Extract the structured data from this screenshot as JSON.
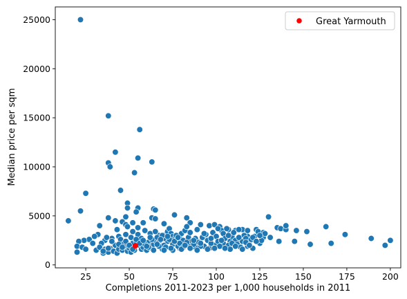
{
  "chart_data": {
    "type": "scatter",
    "title": "",
    "xlabel": "Completions 2011-2023 per 1,000 households in 2011",
    "ylabel": "Median price per sqm",
    "xlim": [
      7.5,
      206
    ],
    "ylim": [
      -300,
      26300
    ],
    "xticks": [
      25,
      50,
      75,
      100,
      125,
      150,
      175,
      200
    ],
    "yticks": [
      0,
      5000,
      10000,
      15000,
      20000,
      25000
    ],
    "grid": false,
    "legend_position": "top-right",
    "colors": {
      "main": "#1f77b4",
      "highlight": "#ff0000",
      "edge": "#ffffff"
    },
    "series": [
      {
        "name": "",
        "color": "#1f77b4",
        "points": [
          [
            22,
            25000
          ],
          [
            38,
            15200
          ],
          [
            56,
            13800
          ],
          [
            42,
            11500
          ],
          [
            55,
            10900
          ],
          [
            38,
            10400
          ],
          [
            39,
            10000
          ],
          [
            63,
            10500
          ],
          [
            53,
            9400
          ],
          [
            45,
            7600
          ],
          [
            25,
            7300
          ],
          [
            49,
            6300
          ],
          [
            55,
            5800
          ],
          [
            49,
            5800
          ],
          [
            64,
            5700
          ],
          [
            65,
            5600
          ],
          [
            22,
            5500
          ],
          [
            54,
            5400
          ],
          [
            76,
            5100
          ],
          [
            48,
            4900
          ],
          [
            63,
            4800
          ],
          [
            38,
            4800
          ],
          [
            65,
            4700
          ],
          [
            83,
            4800
          ],
          [
            130,
            4900
          ],
          [
            15,
            4500
          ],
          [
            42,
            4500
          ],
          [
            46,
            4400
          ],
          [
            52,
            4300
          ],
          [
            48,
            4100
          ],
          [
            58,
            4300
          ],
          [
            70,
            4200
          ],
          [
            85,
            4300
          ],
          [
            91,
            4100
          ],
          [
            96,
            4000
          ],
          [
            99,
            4100
          ],
          [
            102,
            3900
          ],
          [
            107,
            3600
          ],
          [
            111,
            3500
          ],
          [
            115,
            3600
          ],
          [
            118,
            3500
          ],
          [
            123,
            3600
          ],
          [
            127,
            3300
          ],
          [
            135,
            3800
          ],
          [
            137,
            3700
          ],
          [
            140,
            3600
          ],
          [
            140,
            4000
          ],
          [
            146,
            3500
          ],
          [
            152,
            3400
          ],
          [
            163,
            3900
          ],
          [
            174,
            3100
          ],
          [
            189,
            2700
          ],
          [
            197,
            2000
          ],
          [
            200,
            2500
          ],
          [
            166,
            2200
          ],
          [
            154,
            2100
          ],
          [
            145,
            2400
          ],
          [
            136,
            2400
          ],
          [
            127,
            2800
          ],
          [
            118,
            2900
          ],
          [
            113,
            2600
          ],
          [
            108,
            2400
          ],
          [
            104,
            2200
          ],
          [
            99,
            2000
          ],
          [
            93,
            1900
          ],
          [
            88,
            1800
          ],
          [
            84,
            2000
          ],
          [
            79,
            1700
          ],
          [
            75,
            2100
          ],
          [
            72,
            2400
          ],
          [
            70,
            2700
          ],
          [
            67,
            3000
          ],
          [
            62,
            3200
          ],
          [
            59,
            3500
          ],
          [
            55,
            3800
          ],
          [
            52,
            3400
          ],
          [
            48,
            3100
          ],
          [
            44,
            2900
          ],
          [
            40,
            2700
          ],
          [
            36,
            2500
          ],
          [
            34,
            2200
          ],
          [
            32,
            3100
          ],
          [
            30,
            2900
          ],
          [
            27,
            2600
          ],
          [
            24,
            2500
          ],
          [
            21,
            2400
          ],
          [
            20,
            1900
          ],
          [
            20,
            1300
          ],
          [
            23,
            1800
          ],
          [
            25,
            1600
          ],
          [
            29,
            2200
          ],
          [
            31,
            1500
          ],
          [
            33,
            1800
          ],
          [
            35,
            1200
          ],
          [
            36,
            1600
          ],
          [
            38,
            1300
          ],
          [
            39,
            1700
          ],
          [
            41,
            1400
          ],
          [
            42,
            2000
          ],
          [
            43,
            1200
          ],
          [
            44,
            1600
          ],
          [
            46,
            1500
          ],
          [
            47,
            1900
          ],
          [
            49,
            1400
          ],
          [
            50,
            1700
          ],
          [
            51,
            1300
          ],
          [
            52,
            2200
          ],
          [
            54,
            2400
          ],
          [
            56,
            2000
          ],
          [
            57,
            1600
          ],
          [
            58,
            1800
          ],
          [
            60,
            1500
          ],
          [
            61,
            2300
          ],
          [
            62,
            1900
          ],
          [
            63,
            1700
          ],
          [
            64,
            2100
          ],
          [
            65,
            2500
          ],
          [
            66,
            2800
          ],
          [
            67,
            2300
          ],
          [
            68,
            1900
          ],
          [
            69,
            1600
          ],
          [
            70,
            2000
          ],
          [
            71,
            3100
          ],
          [
            72,
            3400
          ],
          [
            73,
            3700
          ],
          [
            74,
            3200
          ],
          [
            75,
            2900
          ],
          [
            76,
            2600
          ],
          [
            77,
            2300
          ],
          [
            78,
            1900
          ],
          [
            79,
            2700
          ],
          [
            80,
            3200
          ],
          [
            81,
            2500
          ],
          [
            82,
            3500
          ],
          [
            83,
            3900
          ],
          [
            84,
            2800
          ],
          [
            85,
            3300
          ],
          [
            86,
            2400
          ],
          [
            87,
            2100
          ],
          [
            88,
            2700
          ],
          [
            89,
            3600
          ],
          [
            90,
            2300
          ],
          [
            91,
            1900
          ],
          [
            92,
            2800
          ],
          [
            94,
            3100
          ],
          [
            95,
            2500
          ],
          [
            96,
            1700
          ],
          [
            97,
            2200
          ],
          [
            98,
            3300
          ],
          [
            100,
            2900
          ],
          [
            101,
            2400
          ],
          [
            102,
            1900
          ],
          [
            103,
            3500
          ],
          [
            104,
            3200
          ],
          [
            105,
            2700
          ],
          [
            106,
            3700
          ],
          [
            107,
            2000
          ],
          [
            108,
            1600
          ],
          [
            109,
            2900
          ],
          [
            110,
            3300
          ],
          [
            111,
            2500
          ],
          [
            112,
            2100
          ],
          [
            113,
            3600
          ],
          [
            114,
            1800
          ],
          [
            115,
            2400
          ],
          [
            116,
            3000
          ],
          [
            117,
            2700
          ],
          [
            118,
            1900
          ],
          [
            119,
            2300
          ],
          [
            120,
            2600
          ],
          [
            121,
            1700
          ],
          [
            122,
            2900
          ],
          [
            124,
            3400
          ],
          [
            125,
            2200
          ],
          [
            126,
            2500
          ],
          [
            128,
            3200
          ],
          [
            131,
            2800
          ],
          [
            38,
            1700
          ],
          [
            40,
            2400
          ],
          [
            43,
            3600
          ],
          [
            45,
            2600
          ],
          [
            47,
            2200
          ],
          [
            49,
            3900
          ],
          [
            51,
            2800
          ],
          [
            53,
            1500
          ],
          [
            55,
            3100
          ],
          [
            57,
            2700
          ],
          [
            59,
            2100
          ],
          [
            61,
            1800
          ],
          [
            63,
            2600
          ],
          [
            65,
            3400
          ],
          [
            67,
            1900
          ],
          [
            69,
            3000
          ],
          [
            71,
            1800
          ],
          [
            73,
            2600
          ],
          [
            75,
            1500
          ],
          [
            77,
            3000
          ],
          [
            79,
            2200
          ],
          [
            81,
            1800
          ],
          [
            83,
            2300
          ],
          [
            85,
            1700
          ],
          [
            87,
            2500
          ],
          [
            89,
            1500
          ],
          [
            91,
            2200
          ],
          [
            93,
            3200
          ],
          [
            95,
            1600
          ],
          [
            97,
            2700
          ],
          [
            99,
            1700
          ],
          [
            101,
            3700
          ],
          [
            103,
            2500
          ],
          [
            105,
            1700
          ],
          [
            107,
            3000
          ],
          [
            109,
            2200
          ],
          [
            111,
            1900
          ],
          [
            113,
            2800
          ],
          [
            115,
            1600
          ],
          [
            117,
            2300
          ],
          [
            119,
            2000
          ],
          [
            121,
            2800
          ],
          [
            123,
            2400
          ],
          [
            125,
            3000
          ],
          [
            33,
            4000
          ],
          [
            35,
            1400
          ],
          [
            37,
            2800
          ],
          [
            44,
            2100
          ],
          [
            46,
            1800
          ],
          [
            48,
            2400
          ],
          [
            50,
            2000
          ],
          [
            52,
            1600
          ],
          [
            54,
            2600
          ],
          [
            56,
            2200
          ],
          [
            58,
            2500
          ],
          [
            60,
            1900
          ],
          [
            62,
            2800
          ],
          [
            64,
            1500
          ],
          [
            66,
            2100
          ],
          [
            68,
            2600
          ],
          [
            70,
            1500
          ],
          [
            72,
            2900
          ],
          [
            74,
            1700
          ],
          [
            76,
            2400
          ],
          [
            78,
            2800
          ],
          [
            80,
            1600
          ],
          [
            82,
            2000
          ]
        ]
      },
      {
        "name": "Great Yarmouth",
        "color": "#ff0000",
        "points": [
          [
            53.5,
            1950
          ]
        ]
      }
    ]
  }
}
